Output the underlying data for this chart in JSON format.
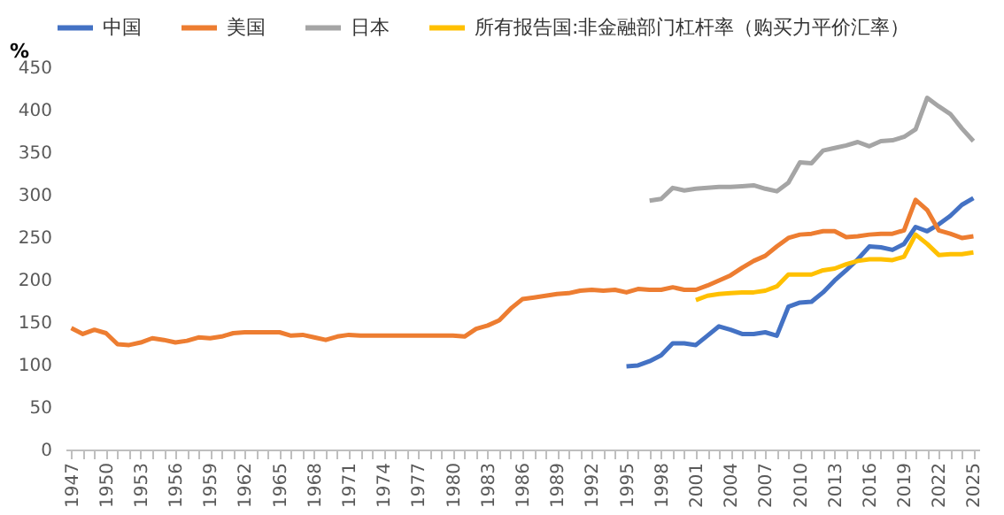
{
  "chart_data": {
    "type": "line",
    "ylabel": "%",
    "legend": "top left",
    "grid": false,
    "marker": "none",
    "line_style": "solid",
    "xlim": [
      1946.5,
      2025.5
    ],
    "ylim": [
      0,
      450
    ],
    "yticks": [
      0,
      50,
      100,
      150,
      200,
      250,
      300,
      350,
      400,
      450
    ],
    "xticks": [
      1947,
      {
        "value": 1948,
        "label": null
      },
      {
        "value": 1949,
        "label": null
      },
      1950,
      {
        "value": 1951,
        "label": null
      },
      {
        "value": 1952,
        "label": null
      },
      1953,
      {
        "value": 1954,
        "label": null
      },
      {
        "value": 1955,
        "label": null
      },
      1956,
      {
        "value": 1957,
        "label": null
      },
      {
        "value": 1958,
        "label": null
      },
      1959,
      {
        "value": 1960,
        "label": null
      },
      {
        "value": 1961,
        "label": null
      },
      1962,
      {
        "value": 1963,
        "label": null
      },
      {
        "value": 1964,
        "label": null
      },
      1965,
      {
        "value": 1966,
        "label": null
      },
      {
        "value": 1967,
        "label": null
      },
      1968,
      {
        "value": 1969,
        "label": null
      },
      {
        "value": 1970,
        "label": null
      },
      1971,
      {
        "value": 1972,
        "label": null
      },
      {
        "value": 1973,
        "label": null
      },
      1974,
      {
        "value": 1975,
        "label": null
      },
      {
        "value": 1976,
        "label": null
      },
      1977,
      {
        "value": 1978,
        "label": null
      },
      {
        "value": 1979,
        "label": null
      },
      1980,
      {
        "value": 1981,
        "label": null
      },
      {
        "value": 1982,
        "label": null
      },
      1983,
      {
        "value": 1984,
        "label": null
      },
      {
        "value": 1985,
        "label": null
      },
      1986,
      {
        "value": 1987,
        "label": null
      },
      {
        "value": 1988,
        "label": null
      },
      1989,
      {
        "value": 1990,
        "label": null
      },
      {
        "value": 1991,
        "label": null
      },
      1992,
      {
        "value": 1993,
        "label": null
      },
      {
        "value": 1994,
        "label": null
      },
      1995,
      {
        "value": 1996,
        "label": null
      },
      {
        "value": 1997,
        "label": null
      },
      1998,
      {
        "value": 1999,
        "label": null
      },
      {
        "value": 2000,
        "label": null
      },
      2001,
      {
        "value": 2002,
        "label": null
      },
      {
        "value": 2003,
        "label": null
      },
      2004,
      {
        "value": 2005,
        "label": null
      },
      {
        "value": 2006,
        "label": null
      },
      2007,
      {
        "value": 2008,
        "label": null
      },
      {
        "value": 2009,
        "label": null
      },
      2010,
      {
        "value": 2011,
        "label": null
      },
      {
        "value": 2012,
        "label": null
      },
      2013,
      {
        "value": 2014,
        "label": null
      },
      {
        "value": 2015,
        "label": null
      },
      2016,
      {
        "value": 2017,
        "label": null
      },
      {
        "value": 2018,
        "label": null
      },
      2019,
      {
        "value": 2020,
        "label": null
      },
      {
        "value": 2021,
        "label": null
      },
      2022,
      {
        "value": 2023,
        "label": null
      },
      {
        "value": 2024,
        "label": null
      },
      2025
    ],
    "series": [
      {
        "name": "中国",
        "color": "#4472c4",
        "x": [
          1995,
          1996,
          1997,
          1998,
          1999,
          2000,
          2001,
          2002,
          2003,
          2004,
          2005,
          2006,
          2007,
          2008,
          2009,
          2010,
          2011,
          2012,
          2013,
          2014,
          2015,
          2016,
          2017,
          2018,
          2019,
          2020,
          2021,
          2022,
          2023,
          2024,
          2025
        ],
        "values": [
          98,
          99,
          104,
          111,
          125,
          125,
          123,
          134,
          145,
          141,
          136,
          136,
          138,
          134,
          168,
          173,
          174,
          185,
          199,
          211,
          224,
          239,
          238,
          235,
          242,
          262,
          257,
          265,
          275,
          288,
          296
        ]
      },
      {
        "name": "美国",
        "color": "#ed7d31",
        "x": [
          1947,
          1948,
          1949,
          1950,
          1951,
          1952,
          1953,
          1954,
          1955,
          1956,
          1957,
          1958,
          1959,
          1960,
          1961,
          1962,
          1963,
          1964,
          1965,
          1966,
          1967,
          1968,
          1969,
          1970,
          1971,
          1972,
          1973,
          1974,
          1975,
          1976,
          1977,
          1978,
          1979,
          1980,
          1981,
          1982,
          1983,
          1984,
          1985,
          1986,
          1987,
          1988,
          1989,
          1990,
          1991,
          1992,
          1993,
          1994,
          1995,
          1996,
          1997,
          1998,
          1999,
          2000,
          2001,
          2002,
          2003,
          2004,
          2005,
          2006,
          2007,
          2008,
          2009,
          2010,
          2011,
          2012,
          2013,
          2014,
          2015,
          2016,
          2017,
          2018,
          2019,
          2020,
          2021,
          2022,
          2023,
          2024,
          2025
        ],
        "values": [
          143,
          136,
          141,
          137,
          124,
          123,
          126,
          131,
          129,
          126,
          128,
          132,
          131,
          133,
          137,
          138,
          138,
          138,
          138,
          134,
          135,
          132,
          129,
          133,
          135,
          134,
          134,
          134,
          134,
          134,
          134,
          134,
          134,
          134,
          133,
          142,
          146,
          152,
          166,
          177,
          179,
          181,
          183,
          184,
          187,
          188,
          187,
          188,
          185,
          189,
          188,
          188,
          191,
          188,
          188,
          193,
          199,
          205,
          214,
          222,
          228,
          239,
          249,
          253,
          254,
          257,
          257,
          250,
          251,
          253,
          254,
          254,
          258,
          294,
          282,
          258,
          254,
          249,
          251
        ]
      },
      {
        "name": "日本",
        "color": "#a5a5a5",
        "x": [
          1997,
          1998,
          1999,
          2000,
          2001,
          2002,
          2003,
          2004,
          2005,
          2006,
          2007,
          2008,
          2009,
          2010,
          2011,
          2012,
          2013,
          2014,
          2015,
          2016,
          2017,
          2018,
          2019,
          2020,
          2021,
          2022,
          2023,
          2024,
          2025
        ],
        "values": [
          293,
          295,
          308,
          305,
          307,
          308,
          309,
          309,
          310,
          311,
          307,
          304,
          314,
          338,
          337,
          352,
          355,
          358,
          362,
          357,
          363,
          364,
          368,
          377,
          414,
          404,
          395,
          378,
          363
        ]
      },
      {
        "name": "所有报告国:非金融部门杠杆率（购买力平价汇率）",
        "color": "#ffc000",
        "x": [
          2001,
          2002,
          2003,
          2004,
          2005,
          2006,
          2007,
          2008,
          2009,
          2010,
          2011,
          2012,
          2013,
          2014,
          2015,
          2016,
          2017,
          2018,
          2019,
          2020,
          2021,
          2022,
          2023,
          2024,
          2025
        ],
        "values": [
          176,
          181,
          183,
          184,
          185,
          185,
          187,
          192,
          206,
          206,
          206,
          211,
          213,
          218,
          222,
          224,
          224,
          223,
          227,
          253,
          242,
          229,
          230,
          230,
          232
        ]
      }
    ]
  }
}
